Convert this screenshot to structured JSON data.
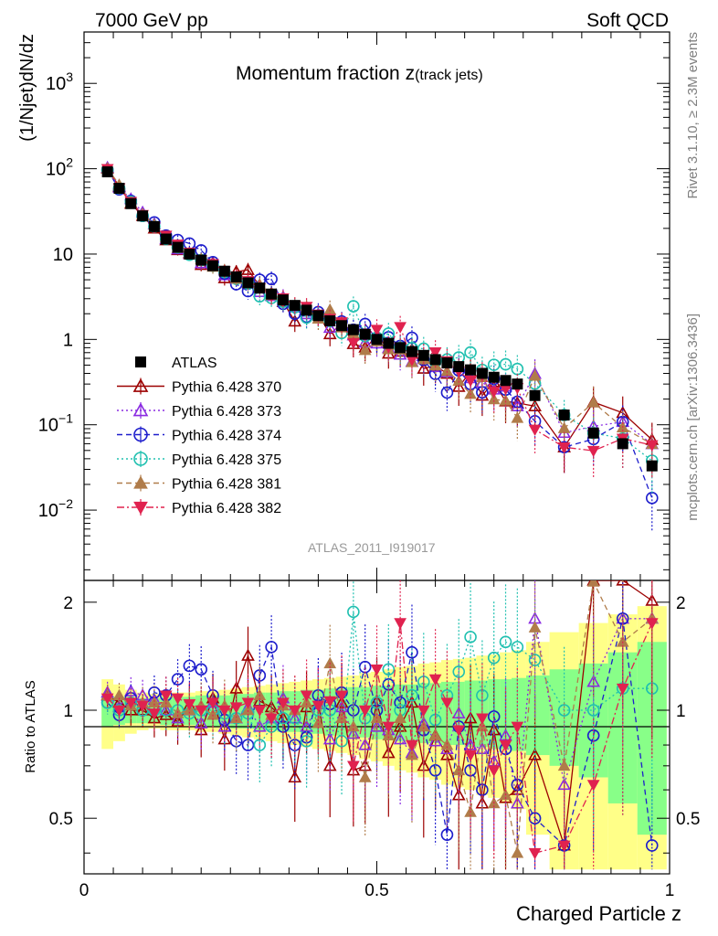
{
  "header": {
    "left": "7000 GeV pp",
    "right": "Soft QCD"
  },
  "side": {
    "rivet": "Rivet 3.1.10, ≥ 2.3M events",
    "mcplots": "mcplots.cern.ch [arXiv:1306.3436]"
  },
  "chart_data": {
    "type": "scatter",
    "title_main": "Momentum fraction z",
    "title_sub": "(track jets)",
    "analysis_tag": "ATLAS_2011_I919017",
    "ylabel": "(1/Njet)dN/dz",
    "ratio_ylabel": "Ratio to ATLAS",
    "xlabel": "Charged Particle z",
    "xlim": [
      0,
      1
    ],
    "ylim": [
      0.0015,
      4000
    ],
    "ratio_ylim": [
      0.35,
      2.3
    ],
    "yscale": "log",
    "x_ticks": [
      "0",
      "0.5",
      "1"
    ],
    "y_ticks": [
      {
        "v": 0.01,
        "label": "10",
        "exp": "−2"
      },
      {
        "v": 0.1,
        "label": "10",
        "exp": "−1"
      },
      {
        "v": 1,
        "label": "1",
        "exp": ""
      },
      {
        "v": 10,
        "label": "10",
        "exp": ""
      },
      {
        "v": 100,
        "label": "10",
        "exp": "2"
      },
      {
        "v": 1000,
        "label": "10",
        "exp": "3"
      }
    ],
    "ratio_ticks": [
      {
        "v": 0.5,
        "label": "0.5"
      },
      {
        "v": 1,
        "label": "1"
      },
      {
        "v": 2,
        "label": "2"
      }
    ],
    "x": [
      0.04,
      0.06,
      0.08,
      0.1,
      0.12,
      0.14,
      0.16,
      0.18,
      0.2,
      0.22,
      0.24,
      0.26,
      0.28,
      0.3,
      0.32,
      0.34,
      0.36,
      0.38,
      0.4,
      0.42,
      0.44,
      0.46,
      0.48,
      0.5,
      0.52,
      0.54,
      0.56,
      0.58,
      0.6,
      0.62,
      0.64,
      0.66,
      0.68,
      0.7,
      0.72,
      0.74,
      0.77,
      0.82,
      0.87,
      0.92,
      0.97
    ],
    "atlas": [
      92,
      59,
      39,
      28,
      21,
      15,
      12,
      10,
      8.5,
      7.3,
      6.3,
      5.4,
      4.6,
      4.0,
      3.4,
      2.9,
      2.5,
      2.2,
      1.9,
      1.65,
      1.45,
      1.3,
      1.15,
      1.0,
      0.9,
      0.8,
      0.72,
      0.65,
      0.58,
      0.53,
      0.48,
      0.44,
      0.4,
      0.36,
      0.33,
      0.3,
      0.22,
      0.13,
      0.08,
      0.06,
      0.033
    ],
    "atlas_band_inner": [
      0.1,
      0.09,
      0.08,
      0.08,
      0.08,
      0.09,
      0.09,
      0.09,
      0.1,
      0.1,
      0.1,
      0.11,
      0.11,
      0.12,
      0.12,
      0.13,
      0.13,
      0.14,
      0.14,
      0.15,
      0.15,
      0.16,
      0.16,
      0.17,
      0.17,
      0.18,
      0.18,
      0.19,
      0.19,
      0.2,
      0.2,
      0.21,
      0.21,
      0.22,
      0.22,
      0.23,
      0.25,
      0.3,
      0.35,
      0.45,
      0.55
    ],
    "atlas_band_outer": [
      0.22,
      0.18,
      0.14,
      0.12,
      0.11,
      0.12,
      0.12,
      0.12,
      0.13,
      0.13,
      0.14,
      0.15,
      0.16,
      0.17,
      0.18,
      0.19,
      0.2,
      0.21,
      0.22,
      0.23,
      0.24,
      0.25,
      0.27,
      0.28,
      0.3,
      0.32,
      0.33,
      0.35,
      0.36,
      0.38,
      0.39,
      0.4,
      0.42,
      0.43,
      0.45,
      0.47,
      0.55,
      0.65,
      0.75,
      0.85,
      0.95
    ],
    "legend": {
      "placement": "middle-left"
    },
    "series": [
      {
        "name": "ATLAS",
        "color": "#000000",
        "marker": "square-filled",
        "line": "none",
        "ratio": [
          1,
          1,
          1,
          1,
          1,
          1,
          1,
          1,
          1,
          1,
          1,
          1,
          1,
          1,
          1,
          1,
          1,
          1,
          1,
          1,
          1,
          1,
          1,
          1,
          1,
          1,
          1,
          1,
          1,
          1,
          1,
          1,
          1,
          1,
          1,
          1,
          1,
          1,
          1,
          1,
          1
        ]
      },
      {
        "name": "Pythia 6.428 370",
        "color": "#9c0000",
        "marker": "triangle-up-open",
        "line": "solid",
        "ratio": [
          1.1,
          1.05,
          1.0,
          1.0,
          0.95,
          0.97,
          0.93,
          1.03,
          0.88,
          1.08,
          0.83,
          1.15,
          1.42,
          1.06,
          1.02,
          0.95,
          0.65,
          1.02,
          1.04,
          0.7,
          1.05,
          0.68,
          0.7,
          1.06,
          0.76,
          0.9,
          1.05,
          0.7,
          0.85,
          0.75,
          0.58,
          0.95,
          0.55,
          0.88,
          0.57,
          0.6,
          0.75,
          0.42,
          2.3,
          2.3,
          2.02
        ]
      },
      {
        "name": "Pythia 6.428 373",
        "color": "#8a2be2",
        "marker": "triangle-up-open",
        "line": "dotted",
        "ratio": [
          1.12,
          1.02,
          1.13,
          1.1,
          1.07,
          1.0,
          0.95,
          1.0,
          0.92,
          1.05,
          0.9,
          0.95,
          1.02,
          0.9,
          0.95,
          1.08,
          0.95,
          0.9,
          1.04,
          0.83,
          1.02,
          0.86,
          0.8,
          0.9,
          0.88,
          0.83,
          0.76,
          0.92,
          0.82,
          0.78,
          0.98,
          0.8,
          0.78,
          0.72,
          0.85,
          0.55,
          1.8,
          0.62,
          1.2,
          1.8,
          1.8
        ]
      },
      {
        "name": "Pythia 6.428 374",
        "color": "#1d1dcc",
        "marker": "circle-open",
        "line": "dashed",
        "ratio": [
          1.05,
          0.97,
          1.08,
          1.0,
          1.12,
          1.1,
          1.22,
          1.33,
          1.3,
          1.1,
          0.94,
          0.82,
          0.8,
          1.25,
          1.5,
          0.9,
          0.8,
          0.84,
          1.1,
          1.04,
          1.12,
          1.0,
          1.32,
          1.0,
          1.18,
          1.05,
          1.45,
          0.88,
          0.68,
          0.45,
          0.9,
          0.68,
          0.6,
          0.96,
          0.78,
          0.62,
          0.5,
          0.42,
          0.85,
          1.8,
          0.42
        ]
      },
      {
        "name": "Pythia 6.428 375",
        "color": "#20c0b0",
        "marker": "circle-open",
        "line": "dotted",
        "ratio": [
          1.05,
          1.0,
          1.05,
          1.0,
          1.0,
          1.0,
          1.0,
          0.98,
          1.0,
          1.0,
          0.98,
          0.95,
          0.98,
          0.8,
          0.9,
          0.95,
          0.95,
          0.82,
          1.0,
          1.0,
          0.82,
          1.88,
          0.95,
          1.05,
          1.3,
          1.0,
          1.1,
          1.2,
          0.94,
          1.1,
          1.28,
          1.6,
          1.1,
          1.4,
          1.55,
          1.5,
          1.38,
          1.0,
          1.0,
          1.15,
          1.15
        ]
      },
      {
        "name": "Pythia 6.428 381",
        "color": "#b07c4a",
        "marker": "triangle-up-filled",
        "line": "dashed",
        "ratio": [
          1.1,
          1.1,
          1.03,
          1.05,
          1.05,
          1.05,
          0.98,
          1.0,
          1.03,
          0.97,
          1.03,
          0.95,
          1.0,
          1.1,
          0.97,
          1.03,
          1.0,
          1.05,
          0.92,
          1.35,
          0.95,
          0.9,
          0.65,
          0.95,
          0.85,
          0.95,
          0.75,
          0.9,
          0.85,
          0.8,
          0.68,
          0.52,
          0.9,
          0.55,
          0.58,
          0.4,
          1.7,
          0.7,
          2.28,
          1.55,
          1.8
        ]
      },
      {
        "name": "Pythia 6.428 382",
        "color": "#e0224f",
        "marker": "triangle-down-filled",
        "line": "dashdot",
        "ratio": [
          1.08,
          1.0,
          1.05,
          1.03,
          0.98,
          1.1,
          1.08,
          1.04,
          1.0,
          1.05,
          1.0,
          1.02,
          1.05,
          1.0,
          0.95,
          1.05,
          1.0,
          1.1,
          1.03,
          1.06,
          1.1,
          0.7,
          1.0,
          1.3,
          0.9,
          1.75,
          0.8,
          1.0,
          1.22,
          1.05,
          0.88,
          0.75,
          0.95,
          0.68,
          0.8,
          0.9,
          0.4,
          0.42,
          0.62,
          1.15,
          1.75
        ]
      }
    ]
  }
}
